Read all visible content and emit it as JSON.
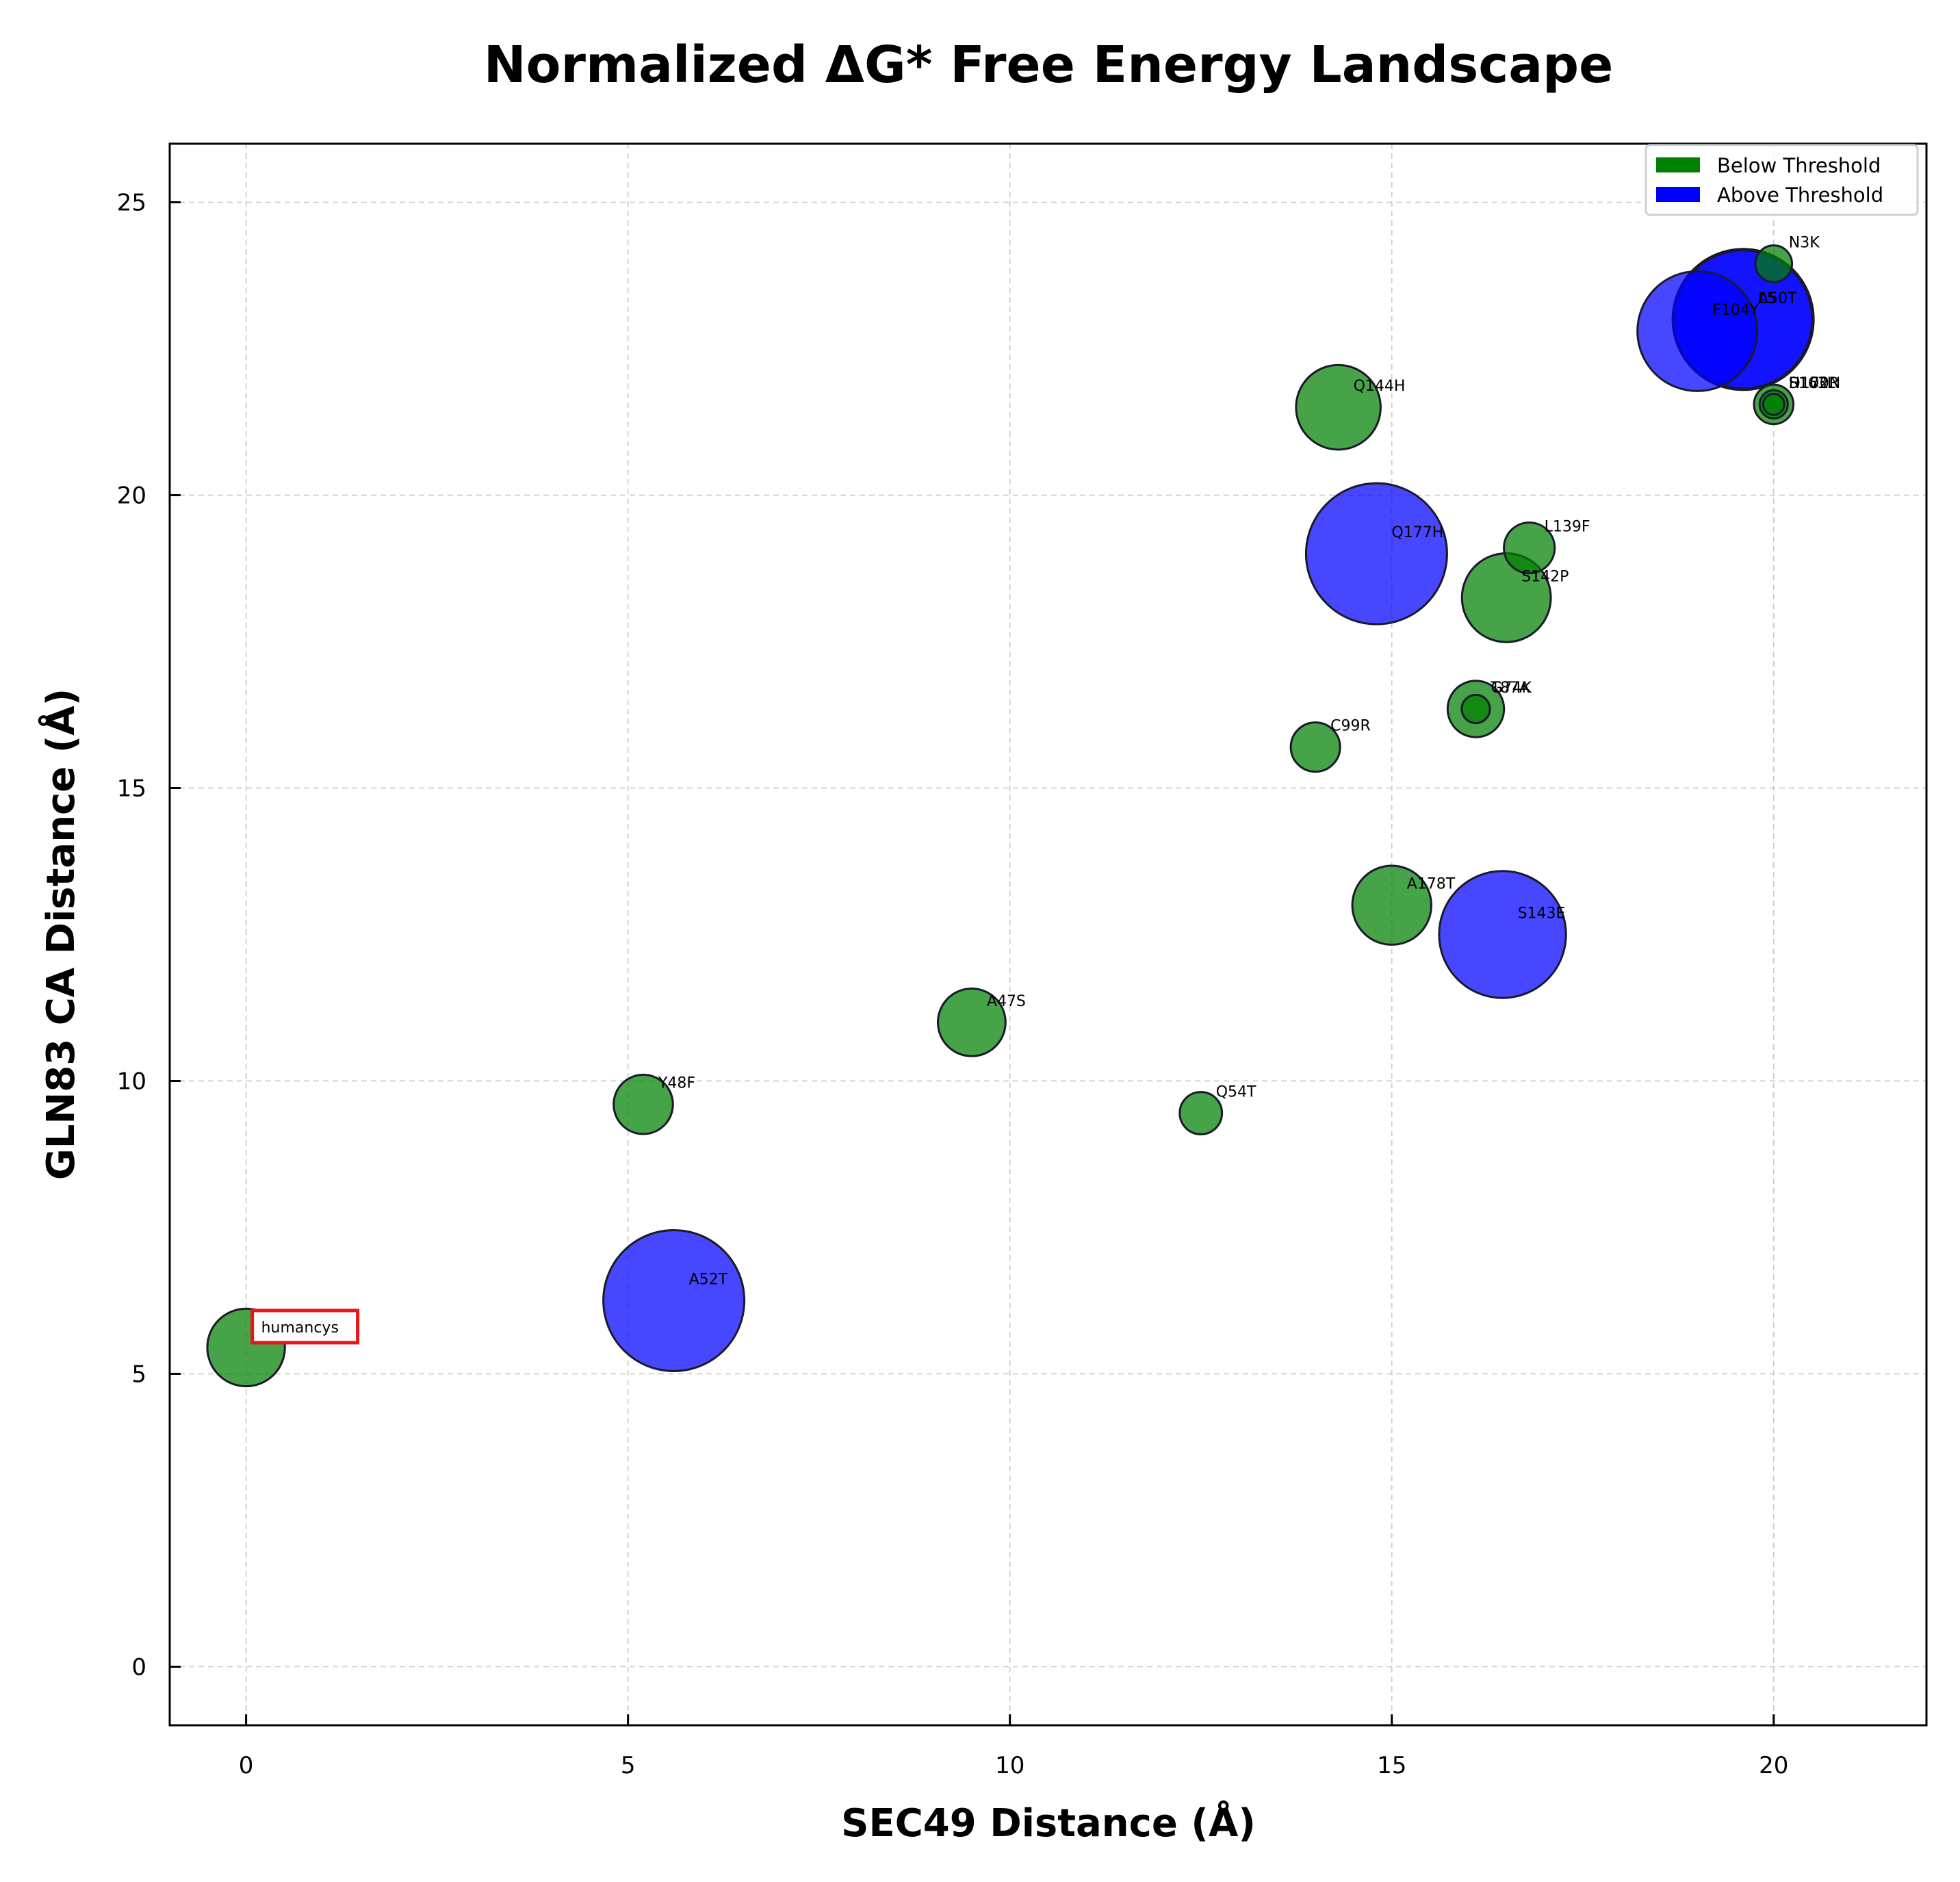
{
  "chart_data": {
    "type": "scatter",
    "title": "Normalized ΔG* Free Energy Landscape",
    "xlabel": "SEC49 Distance (Å)",
    "ylabel": "GLN83 CA Distance (Å)",
    "xlim": [
      -1,
      22
    ],
    "ylim": [
      -1,
      26
    ],
    "xticks": [
      0,
      5,
      10,
      15,
      20
    ],
    "yticks": [
      0,
      5,
      10,
      15,
      20,
      25
    ],
    "grid": true,
    "legend_position": "top-right",
    "legend": [
      {
        "label": "Below Threshold",
        "color": "#008000"
      },
      {
        "label": "Above Threshold",
        "color": "#0000ff"
      }
    ],
    "colors": {
      "below": "#008000",
      "above": "#0000ff",
      "highlight_box": "#e8161b"
    },
    "highlighted": "humancys",
    "bubble_size_encoding": "ΔG* magnitude (relative)",
    "points": [
      {
        "label": "humancys",
        "x": 0.0,
        "y": 5.45,
        "size": 0.55,
        "group": "below"
      },
      {
        "label": "Y48F",
        "x": 5.2,
        "y": 9.6,
        "size": 0.42,
        "group": "below"
      },
      {
        "label": "A52T",
        "x": 5.6,
        "y": 6.25,
        "size": 1.0,
        "group": "above"
      },
      {
        "label": "A47S",
        "x": 9.5,
        "y": 11.0,
        "size": 0.48,
        "group": "below"
      },
      {
        "label": "Q54T",
        "x": 12.5,
        "y": 9.45,
        "size": 0.3,
        "group": "below"
      },
      {
        "label": "C99R",
        "x": 14.0,
        "y": 15.7,
        "size": 0.35,
        "group": "below"
      },
      {
        "label": "Q144H",
        "x": 14.3,
        "y": 21.5,
        "size": 0.6,
        "group": "below"
      },
      {
        "label": "Q177H",
        "x": 14.8,
        "y": 19.0,
        "size": 1.0,
        "group": "above"
      },
      {
        "label": "A178T",
        "x": 15.0,
        "y": 13.0,
        "size": 0.56,
        "group": "below"
      },
      {
        "label": "T87A",
        "x": 16.1,
        "y": 16.35,
        "size": 0.4,
        "group": "below"
      },
      {
        "label": "G74K",
        "x": 16.1,
        "y": 16.35,
        "size": 0.2,
        "group": "below"
      },
      {
        "label": "S143E",
        "x": 16.45,
        "y": 12.5,
        "size": 0.9,
        "group": "above"
      },
      {
        "label": "S142P",
        "x": 16.5,
        "y": 18.25,
        "size": 0.63,
        "group": "below"
      },
      {
        "label": "L139F",
        "x": 16.8,
        "y": 19.1,
        "size": 0.36,
        "group": "below"
      },
      {
        "label": "F104Y",
        "x": 19.0,
        "y": 22.8,
        "size": 0.85,
        "group": "above"
      },
      {
        "label": "A50T",
        "x": 19.6,
        "y": 23.0,
        "size": 1.0,
        "group": "above"
      },
      {
        "label": "L5",
        "x": 19.6,
        "y": 23.0,
        "size": 0.98,
        "group": "above"
      },
      {
        "label": "N3K",
        "x": 20.0,
        "y": 23.95,
        "size": 0.26,
        "group": "below"
      },
      {
        "label": "S163L",
        "x": 20.0,
        "y": 21.55,
        "size": 0.28,
        "group": "below"
      },
      {
        "label": "H102R",
        "x": 20.0,
        "y": 21.55,
        "size": 0.2,
        "group": "below"
      },
      {
        "label": "D170N",
        "x": 20.0,
        "y": 21.55,
        "size": 0.15,
        "group": "below"
      }
    ]
  }
}
